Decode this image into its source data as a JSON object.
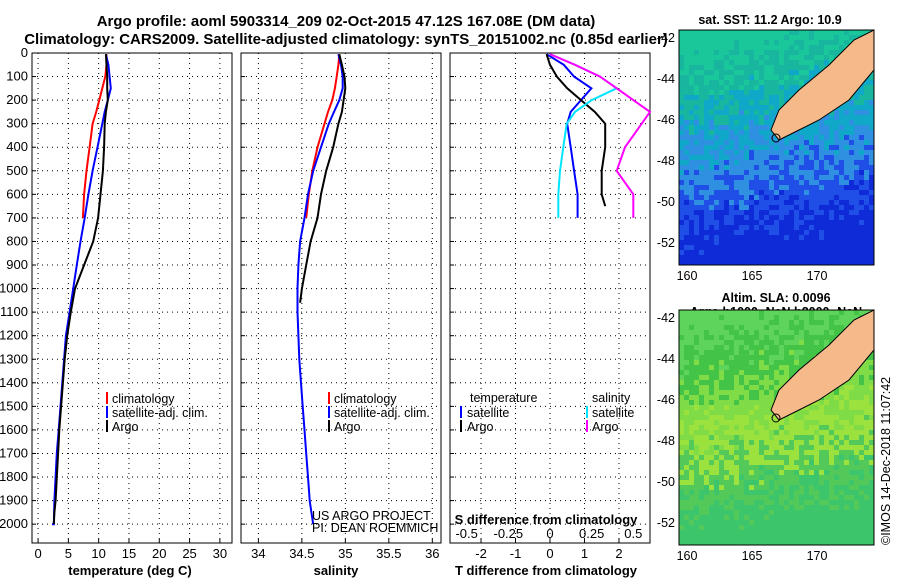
{
  "title_line1": "Argo profile: aoml 5903314_209 02-Oct-2015 47.12S 167.08E (DM data)",
  "title_line2": "Climatology: CARS2009. Satellite-adjusted climatology: synTS_20151002.nc (0.85d earlier)",
  "credit_line1": "US ARGO PROJECT",
  "credit_line2": "PI: DEAN ROEMMICH",
  "imos_stamp": "©IMOS 14-Dec-2018 11:07:42",
  "legend": {
    "climatology": "climatology",
    "satellite_adj": "satellite-adj. clim.",
    "argo": "Argo",
    "diff_temperature": "temperature",
    "diff_salinity": "salinity",
    "diff_satellite": "satellite"
  },
  "colors": {
    "climatology": "#ff0000",
    "satellite_adj": "#0000ff",
    "argo": "#000000",
    "sal_satellite": "#00e5ff",
    "sal_argo": "#ff00ff",
    "land": "#f5b98a"
  },
  "maps": {
    "sst_title": "sat. SST: 11.2  Argo: 10.9",
    "sla_title_line1": "Altim. SLA: 0.0096",
    "sla_title_line2": "Argo h1000: NaN h2000: NaN",
    "lon_ticks": [
      "160",
      "165",
      "170"
    ],
    "lat_ticks": [
      "-42",
      "-44",
      "-46",
      "-48",
      "-50",
      "-52"
    ]
  },
  "chart_data": [
    {
      "type": "line",
      "panel": "temperature",
      "xlabel": "temperature (deg C)",
      "ylabel": "",
      "xlim": [
        -1,
        32
      ],
      "ylim": [
        2080,
        0
      ],
      "x_ticks": [
        "0",
        "5",
        "10",
        "15",
        "20",
        "25",
        "30"
      ],
      "y_ticks": [
        "0",
        "100",
        "200",
        "300",
        "400",
        "500",
        "600",
        "700",
        "800",
        "900",
        "1000",
        "1100",
        "1200",
        "1300",
        "1400",
        "1500",
        "1600",
        "1700",
        "1800",
        "1900",
        "2000"
      ],
      "series": [
        {
          "name": "climatology",
          "x": [
            11.3,
            11.3,
            11.1,
            10.6,
            10.1,
            9.6,
            9.0,
            8.5,
            8.0,
            7.6,
            7.4
          ],
          "y": [
            5,
            50,
            100,
            150,
            200,
            250,
            300,
            400,
            500,
            600,
            700
          ]
        },
        {
          "name": "satellite-adj. clim.",
          "x": [
            11.2,
            11.6,
            11.8,
            12.0,
            11.5,
            11.0,
            10.6,
            9.8,
            9.0,
            8.3,
            7.7,
            7.0,
            6.4,
            5.8,
            5.2,
            4.6,
            4.3,
            4.0,
            3.7,
            3.4,
            3.1,
            2.9,
            2.7,
            2.6,
            2.5,
            2.4,
            2.4,
            2.3
          ],
          "y": [
            5,
            50,
            100,
            150,
            200,
            250,
            300,
            400,
            500,
            600,
            700,
            800,
            900,
            1000,
            1100,
            1200,
            1300,
            1400,
            1500,
            1600,
            1700,
            1800,
            1900,
            2000,
            2000,
            2000,
            2000,
            2000
          ]
        },
        {
          "name": "Argo",
          "x": [
            11.2,
            11.3,
            11.4,
            11.4,
            11.5,
            11.2,
            11.0,
            10.9,
            10.7,
            10.3,
            9.9,
            9.1,
            7.6,
            6.1,
            5.4,
            4.8,
            4.4,
            4.1,
            3.8,
            3.5,
            3.3,
            3.1,
            2.9,
            2.7,
            2.6
          ],
          "y": [
            5,
            50,
            100,
            150,
            200,
            250,
            300,
            400,
            500,
            600,
            700,
            800,
            900,
            1000,
            1100,
            1200,
            1300,
            1400,
            1500,
            1600,
            1700,
            1800,
            1900,
            1950,
            2000
          ]
        }
      ]
    },
    {
      "type": "line",
      "panel": "salinity",
      "xlabel": "salinity",
      "ylabel": "",
      "xlim": [
        33.8,
        36.1
      ],
      "ylim": [
        2080,
        0
      ],
      "x_ticks": [
        "34",
        "34.5",
        "35",
        "35.5",
        "36"
      ],
      "series": [
        {
          "name": "climatology",
          "x": [
            34.93,
            34.92,
            34.9,
            34.88,
            34.85,
            34.8,
            34.76,
            34.68,
            34.62,
            34.58,
            34.55
          ],
          "y": [
            5,
            50,
            100,
            150,
            200,
            250,
            300,
            400,
            500,
            600,
            700
          ]
        },
        {
          "name": "satellite-adj. clim.",
          "x": [
            34.92,
            34.95,
            34.97,
            34.97,
            34.93,
            34.87,
            34.81,
            34.72,
            34.63,
            34.57,
            34.53,
            34.48,
            34.46,
            34.45,
            34.45,
            34.46,
            34.47,
            34.49,
            34.51,
            34.53,
            34.55,
            34.57,
            34.59,
            34.61,
            34.63
          ],
          "y": [
            5,
            50,
            100,
            150,
            200,
            250,
            300,
            400,
            500,
            600,
            700,
            800,
            900,
            1000,
            1100,
            1200,
            1300,
            1400,
            1500,
            1600,
            1700,
            1800,
            1900,
            1950,
            2000
          ]
        },
        {
          "name": "Argo",
          "x": [
            34.93,
            34.96,
            34.99,
            35.0,
            34.98,
            34.96,
            34.92,
            34.86,
            34.78,
            34.72,
            34.68,
            34.6,
            34.55,
            34.5,
            34.48
          ],
          "y": [
            5,
            50,
            100,
            150,
            200,
            250,
            300,
            400,
            500,
            600,
            700,
            800,
            900,
            1000,
            1060
          ]
        }
      ]
    },
    {
      "type": "line",
      "panel": "difference",
      "xlabel": "T difference from climatology",
      "xlabel2": "S difference from climatology",
      "ylabel": "",
      "xlim": [
        -2.9,
        2.9
      ],
      "ylim": [
        2080,
        0
      ],
      "x_ticks": [
        "-2",
        "-1",
        "0",
        "1",
        "2"
      ],
      "x_ticks2": [
        "-0.5",
        "-0.25",
        "0",
        "0.25",
        "0.5"
      ],
      "series": [
        {
          "name": "temperature satellite",
          "x": [
            -0.1,
            0.4,
            0.7,
            1.2,
            0.9,
            0.6,
            0.5,
            0.6,
            0.7,
            0.8,
            0.8
          ],
          "y": [
            5,
            50,
            100,
            150,
            200,
            250,
            300,
            400,
            500,
            600,
            700
          ]
        },
        {
          "name": "temperature Argo",
          "x": [
            -0.1,
            0.0,
            0.2,
            0.5,
            0.9,
            1.3,
            1.6,
            1.6,
            1.5,
            1.5,
            1.5,
            1.6
          ],
          "y": [
            5,
            50,
            100,
            150,
            200,
            250,
            300,
            400,
            500,
            550,
            600,
            650
          ]
        },
        {
          "name": "salinity satellite",
          "x": [
            0.0,
            0.15,
            0.3,
            0.4,
            0.25,
            0.15,
            0.1,
            0.08,
            0.06,
            0.05,
            0.05
          ],
          "y": [
            5,
            50,
            100,
            150,
            200,
            250,
            300,
            400,
            500,
            600,
            700
          ]
        },
        {
          "name": "salinity Argo",
          "x": [
            0.0,
            0.15,
            0.3,
            0.4,
            0.5,
            0.6,
            0.55,
            0.45,
            0.4,
            0.5,
            0.5
          ],
          "y": [
            5,
            50,
            100,
            150,
            200,
            250,
            300,
            400,
            500,
            600,
            700
          ]
        }
      ]
    }
  ]
}
